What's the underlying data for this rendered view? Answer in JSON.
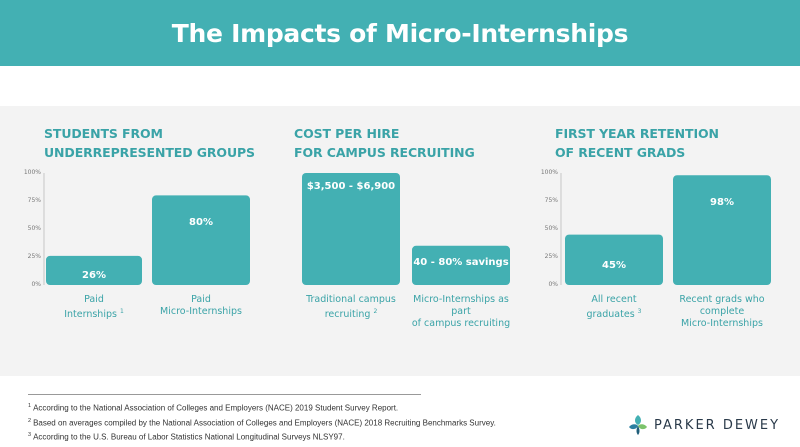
{
  "title": "The Impacts of Micro-Internships",
  "colors": {
    "teal": "#43b0b3",
    "title_teal": "#3aa3a7",
    "panel_bg": "#f3f3f3"
  },
  "chart_data": [
    {
      "type": "bar",
      "title_lines": [
        "STUDENTS FROM",
        "UNDERREPRESENTED GROUPS"
      ],
      "yticks": [
        "100%",
        "75%",
        "50%",
        "25%",
        "0%"
      ],
      "ylim": [
        0,
        100
      ],
      "grid": false,
      "categories": [
        [
          "Paid",
          "Internships 1"
        ],
        [
          "Paid",
          "Micro-Internships"
        ]
      ],
      "values": [
        26,
        80
      ],
      "labels": [
        "26%",
        "80%"
      ]
    },
    {
      "type": "bar",
      "title_lines": [
        "COST PER HIRE",
        "FOR CAMPUS RECRUITING"
      ],
      "yticks": [],
      "categories": [
        [
          "Traditional campus",
          "recruiting 2"
        ],
        [
          "Micro-Internships as part",
          "of campus recruiting"
        ]
      ],
      "values": [
        100,
        35
      ],
      "labels": [
        "$3,500 - $6,900",
        "40 - 80% savings"
      ]
    },
    {
      "type": "bar",
      "title_lines": [
        "FIRST YEAR RETENTION",
        "OF RECENT GRADS"
      ],
      "yticks": [
        "100%",
        "75%",
        "50%",
        "25%",
        "0%"
      ],
      "ylim": [
        0,
        100
      ],
      "grid": false,
      "categories": [
        [
          "All recent",
          "graduates 3"
        ],
        [
          "Recent grads who",
          "complete",
          "Micro-Internships"
        ]
      ],
      "values": [
        45,
        98
      ],
      "labels": [
        "45%",
        "98%"
      ]
    }
  ],
  "footnotes": [
    {
      "num": "1",
      "text": "According to the National Association of Colleges and  Employers (NACE) 2019 Student Survey Report."
    },
    {
      "num": "2",
      "text": "Based on averages compiled by the  National Association of Colleges and Employers  (NACE) 2018 Recruiting Benchmarks Survey."
    },
    {
      "num": "3",
      "text": "According to the U.S. Bureau of Labor Statistics National Longitudinal Surveys NLSY97."
    }
  ],
  "logo": {
    "text": "PARKER DEWEY",
    "icon": "leaf-logo-icon"
  }
}
